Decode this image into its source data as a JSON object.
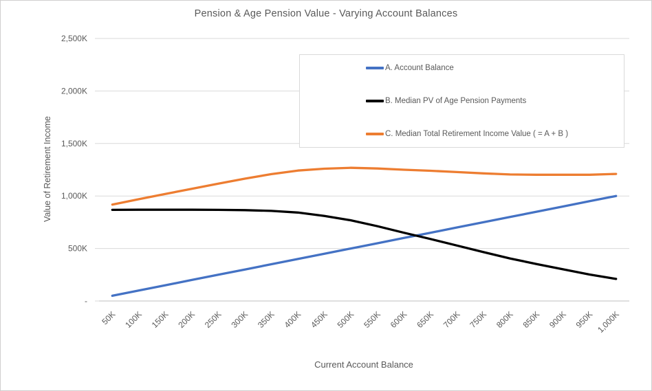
{
  "chart_data": {
    "type": "line",
    "title": "Pension & Age Pension Value - Varying Account Balances",
    "xlabel": "Current Account Balance",
    "ylabel": "Value of Retirement Income",
    "categories": [
      "50K",
      "100K",
      "150K",
      "200K",
      "250K",
      "300K",
      "350K",
      "400K",
      "450K",
      "500K",
      "550K",
      "600K",
      "650K",
      "700K",
      "750K",
      "800K",
      "850K",
      "900K",
      "950K",
      "1,000K"
    ],
    "x_values_k": [
      50,
      100,
      150,
      200,
      250,
      300,
      350,
      400,
      450,
      500,
      550,
      600,
      650,
      700,
      750,
      800,
      850,
      900,
      950,
      1000
    ],
    "series": [
      {
        "name": "A. Account Balance",
        "color": "#4472C4",
        "values": [
          50,
          100,
          150,
          200,
          250,
          300,
          350,
          400,
          450,
          500,
          550,
          600,
          650,
          700,
          750,
          800,
          850,
          900,
          950,
          1000
        ]
      },
      {
        "name": "B. Median PV of Age Pension Payments",
        "color": "#000000",
        "values": [
          868,
          869,
          869,
          869,
          868,
          865,
          858,
          842,
          810,
          768,
          712,
          650,
          590,
          528,
          465,
          405,
          352,
          302,
          252,
          210
        ]
      },
      {
        "name": "C. Median Total Retirement Income Value ( = A + B )",
        "color": "#ED7D31",
        "values": [
          918,
          969,
          1019,
          1069,
          1118,
          1165,
          1208,
          1242,
          1260,
          1268,
          1262,
          1250,
          1240,
          1228,
          1215,
          1205,
          1202,
          1202,
          1202,
          1210
        ]
      }
    ],
    "y_tick_labels": [
      "-",
      "500K",
      "1,000K",
      "1,500K",
      "2,000K",
      "2,500K"
    ],
    "y_tick_values": [
      0,
      500,
      1000,
      1500,
      2000,
      2500
    ],
    "ylim": [
      0,
      2500
    ],
    "grid": true,
    "legend_position": "inside-top-right-box",
    "gridline_color": "#D9D9D9",
    "axis_line_color": "#BFBFBF",
    "text_color": "#595959"
  }
}
